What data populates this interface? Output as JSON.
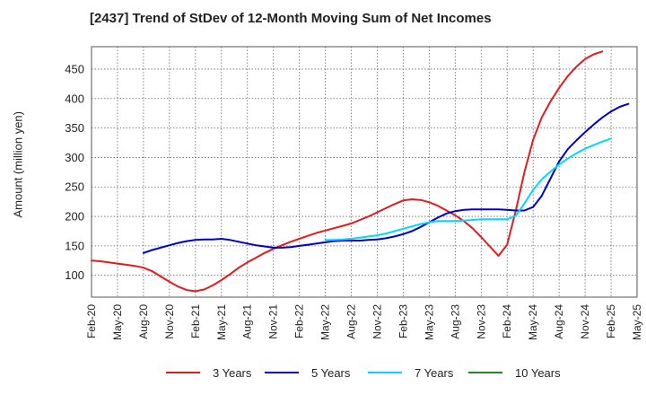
{
  "title": "[2437]  Trend of StDev of 12-Month Moving Sum of Net Incomes",
  "chart_data": {
    "type": "line",
    "title": "[2437]  Trend of StDev of 12-Month Moving Sum of Net Incomes",
    "xlabel": "",
    "ylabel": "Amount (million yen)",
    "ylim": [
      63,
      488
    ],
    "yticks": [
      100,
      150,
      200,
      250,
      300,
      350,
      400,
      450
    ],
    "x_tick_labels": [
      "Feb-20",
      "May-20",
      "Aug-20",
      "Nov-20",
      "Feb-21",
      "May-21",
      "Aug-21",
      "Nov-21",
      "Feb-22",
      "May-22",
      "Aug-22",
      "Nov-22",
      "Feb-23",
      "May-23",
      "Aug-23",
      "Nov-23",
      "Feb-24",
      "May-24",
      "Aug-24",
      "Nov-24",
      "Feb-25",
      "May-25"
    ],
    "grid": true,
    "legend_position": "bottom",
    "series": [
      {
        "name": "3 Years",
        "color": "#e41a1c",
        "values": [
          125,
          124,
          122,
          120,
          118,
          116,
          113,
          107,
          98,
          89,
          81,
          75,
          73,
          76,
          83,
          92,
          102,
          113,
          122,
          130,
          138,
          145,
          151,
          157,
          162,
          167,
          172,
          176,
          180,
          184,
          188,
          194,
          200,
          207,
          214,
          221,
          227,
          229,
          228,
          224,
          218,
          210,
          202,
          192,
          180,
          165,
          149,
          133,
          152,
          210,
          275,
          330,
          368,
          395,
          418,
          438,
          454,
          467,
          475,
          480
        ]
      },
      {
        "name": "5 Years",
        "color": "#0000cc",
        "start_index": 6,
        "values": [
          138,
          143,
          147,
          151,
          155,
          158,
          160,
          161,
          161,
          162,
          160,
          157,
          154,
          151,
          149,
          147,
          147,
          148,
          150,
          152,
          154,
          156,
          158,
          159,
          159,
          159,
          160,
          161,
          163,
          166,
          170,
          175,
          182,
          190,
          198,
          205,
          209,
          211,
          212,
          212,
          212,
          212,
          211,
          210,
          210,
          216,
          235,
          264,
          293,
          314,
          329,
          343,
          356,
          368,
          378,
          386,
          391
        ]
      },
      {
        "name": "7 Years",
        "color": "#00d8ff",
        "start_index": 27,
        "values": [
          160,
          160,
          161,
          162,
          164,
          166,
          168,
          171,
          175,
          179,
          183,
          187,
          190,
          192,
          192,
          192,
          193,
          194,
          195,
          195,
          195,
          195,
          201,
          222,
          245,
          263,
          276,
          288,
          298,
          307,
          315,
          321,
          327,
          332
        ]
      },
      {
        "name": "10 Years",
        "color": "#228b22",
        "values": []
      }
    ]
  }
}
